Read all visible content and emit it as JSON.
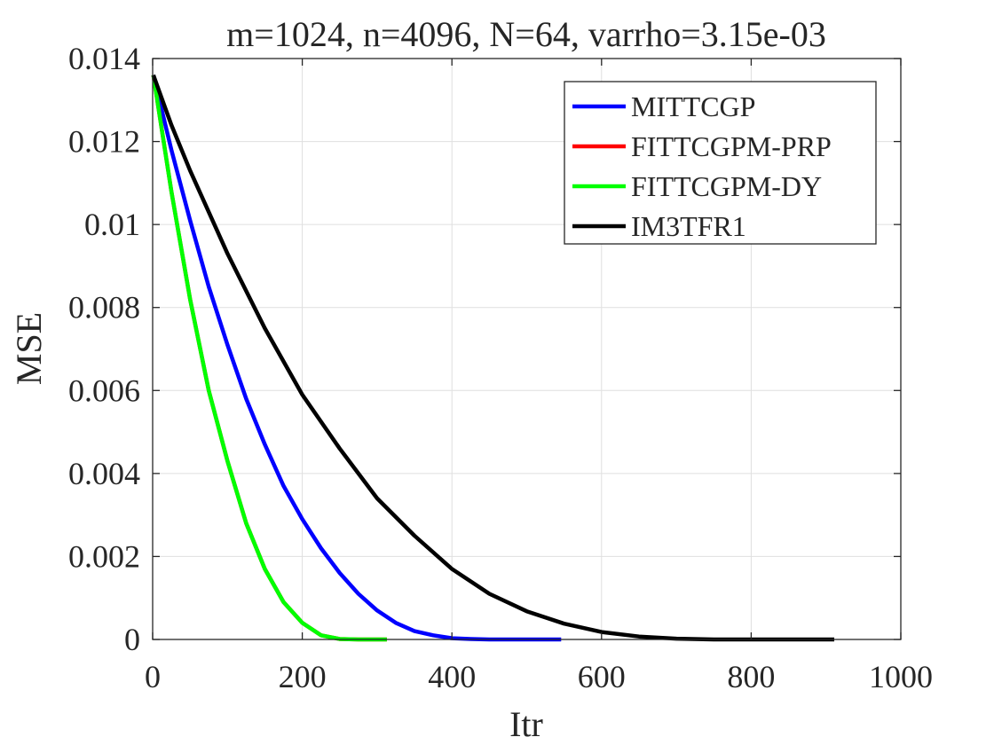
{
  "chart_data": {
    "type": "line",
    "title": "m=1024, n=4096, N=64, varrho=3.15e-03",
    "xlabel": "Itr",
    "ylabel": "MSE",
    "xlim": [
      0,
      1000
    ],
    "ylim": [
      0,
      0.014
    ],
    "xticks": [
      0,
      200,
      400,
      600,
      800,
      1000
    ],
    "xtick_labels": [
      "0",
      "200",
      "400",
      "600",
      "800",
      "1000"
    ],
    "yticks": [
      0,
      0.002,
      0.004,
      0.006,
      0.008,
      0.01,
      0.012,
      0.014
    ],
    "ytick_labels": [
      "0",
      "0.002",
      "0.004",
      "0.006",
      "0.008",
      "0.01",
      "0.012",
      "0.014"
    ],
    "grid": true,
    "legend_position": "top-right",
    "series": [
      {
        "name": "MITTCGP",
        "color": "#0000ff",
        "x": [
          1,
          25,
          50,
          75,
          100,
          125,
          150,
          175,
          200,
          225,
          250,
          275,
          300,
          325,
          350,
          375,
          400,
          425,
          450,
          475,
          500,
          525,
          546
        ],
        "y": [
          0.0136,
          0.0118,
          0.0101,
          0.0085,
          0.0071,
          0.0058,
          0.0047,
          0.0037,
          0.0029,
          0.0022,
          0.0016,
          0.0011,
          0.0007,
          0.0004,
          0.0002,
          0.0001,
          3e-05,
          1e-05,
          0,
          0,
          0,
          0,
          0
        ]
      },
      {
        "name": "FITTCGPM-PRP",
        "color": "#ff0000",
        "x": [
          1,
          25,
          50,
          75,
          100,
          125,
          150,
          175,
          200,
          225,
          250,
          275,
          300,
          313
        ],
        "y": [
          0.0136,
          0.0108,
          0.0082,
          0.006,
          0.0043,
          0.0028,
          0.0017,
          0.0009,
          0.0004,
          0.0001,
          1e-05,
          0,
          0,
          0
        ]
      },
      {
        "name": "FITTCGPM-DY",
        "color": "#00ff00",
        "x": [
          1,
          25,
          50,
          75,
          100,
          125,
          150,
          175,
          200,
          225,
          250,
          275,
          300,
          313
        ],
        "y": [
          0.0136,
          0.0108,
          0.0082,
          0.006,
          0.0043,
          0.0028,
          0.0017,
          0.0009,
          0.0004,
          0.0001,
          1e-05,
          0,
          0,
          0
        ]
      },
      {
        "name": "IM3TFR1",
        "color": "#000000",
        "x": [
          1,
          25,
          50,
          100,
          150,
          200,
          250,
          300,
          350,
          400,
          450,
          500,
          550,
          600,
          650,
          700,
          750,
          800,
          850,
          911
        ],
        "y": [
          0.0136,
          0.0124,
          0.0113,
          0.0093,
          0.0075,
          0.0059,
          0.0046,
          0.0034,
          0.0025,
          0.0017,
          0.0011,
          0.00068,
          0.00038,
          0.00018,
          7e-05,
          2e-05,
          0,
          0,
          0,
          0
        ]
      }
    ]
  }
}
